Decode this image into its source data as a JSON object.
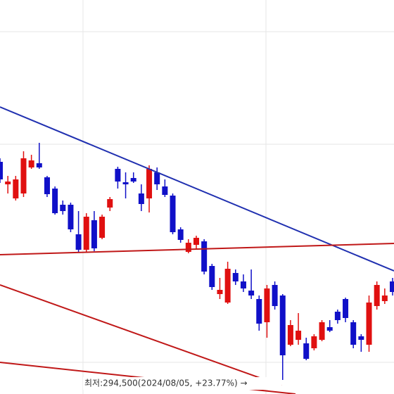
{
  "chart_data": {
    "type": "candlestick",
    "ylim": [
      290500,
      402500
    ],
    "xlim": [
      0,
      50.18
    ],
    "yticks": [
      393500,
      361500,
      299500
    ],
    "xticks": [
      10.57,
      33.87
    ],
    "grid": true,
    "up_color": "#e01010",
    "down_color": "#1010c8",
    "open": [
      356500,
      350100,
      346100,
      347500,
      354900,
      356100,
      352100,
      348900,
      344300,
      344300,
      335900,
      331500,
      339900,
      334900,
      343500,
      354500,
      350700,
      351900,
      347500,
      346100,
      353500,
      349500,
      346900,
      337300,
      330900,
      332900,
      333900,
      326900,
      318900,
      316500,
      324900,
      322500,
      319900,
      317500,
      310900,
      321500,
      318500,
      304500,
      305900,
      304900,
      303500,
      305900,
      309500,
      313900,
      317500,
      310900,
      306900,
      304500,
      315500,
      316900,
      322500
    ],
    "high": [
      357500,
      352500,
      352500,
      359500,
      358500,
      361900,
      352500,
      349500,
      345500,
      344900,
      342500,
      341900,
      342500,
      341500,
      346500,
      355100,
      353500,
      353500,
      350100,
      355500,
      354900,
      351500,
      347500,
      337900,
      334500,
      335500,
      334500,
      327500,
      323500,
      328100,
      325900,
      324500,
      325900,
      318500,
      321500,
      322500,
      318900,
      311500,
      313500,
      306500,
      307500,
      311500,
      311500,
      314500,
      317900,
      311500,
      307500,
      318500,
      322500,
      320500,
      323500
    ],
    "low": [
      350500,
      347500,
      345500,
      346500,
      354500,
      354500,
      346500,
      341500,
      341500,
      336500,
      330900,
      330900,
      331100,
      334500,
      342500,
      348900,
      346100,
      350500,
      342500,
      342100,
      348500,
      346500,
      335900,
      333500,
      330500,
      331500,
      324500,
      320100,
      317500,
      316100,
      321500,
      319500,
      317500,
      308500,
      306500,
      314500,
      294500,
      304100,
      304500,
      300100,
      302900,
      305500,
      308100,
      310500,
      310900,
      303500,
      302500,
      302500,
      314500,
      316100,
      318500
    ],
    "close": [
      351500,
      350900,
      351500,
      357500,
      356900,
      354900,
      347300,
      341900,
      342500,
      337300,
      331500,
      340900,
      331900,
      340900,
      345900,
      350900,
      350100,
      350900,
      344500,
      354500,
      350100,
      347100,
      336500,
      334300,
      333500,
      334900,
      325300,
      320900,
      320100,
      326100,
      322500,
      320500,
      318500,
      310500,
      320500,
      315500,
      301500,
      310100,
      308500,
      300500,
      306900,
      310900,
      308500,
      311500,
      312100,
      304500,
      305900,
      316500,
      321500,
      318500,
      319500
    ],
    "trend_lines": [
      {
        "color": "#2030b0",
        "points": [
          [
            0,
            372100
          ],
          [
            50.18,
            325500
          ]
        ]
      },
      {
        "color": "#c01818",
        "points": [
          [
            0,
            330100
          ],
          [
            50.18,
            333300
          ]
        ]
      },
      {
        "color": "#c01818",
        "points": [
          [
            0,
            321500
          ],
          [
            35.84,
            292900
          ]
        ]
      },
      {
        "color": "#c01818",
        "points": [
          [
            0,
            299500
          ],
          [
            37.63,
            290500
          ]
        ]
      }
    ],
    "annotation": "최저:294,500(2024/08/05, +23.77%) →"
  }
}
